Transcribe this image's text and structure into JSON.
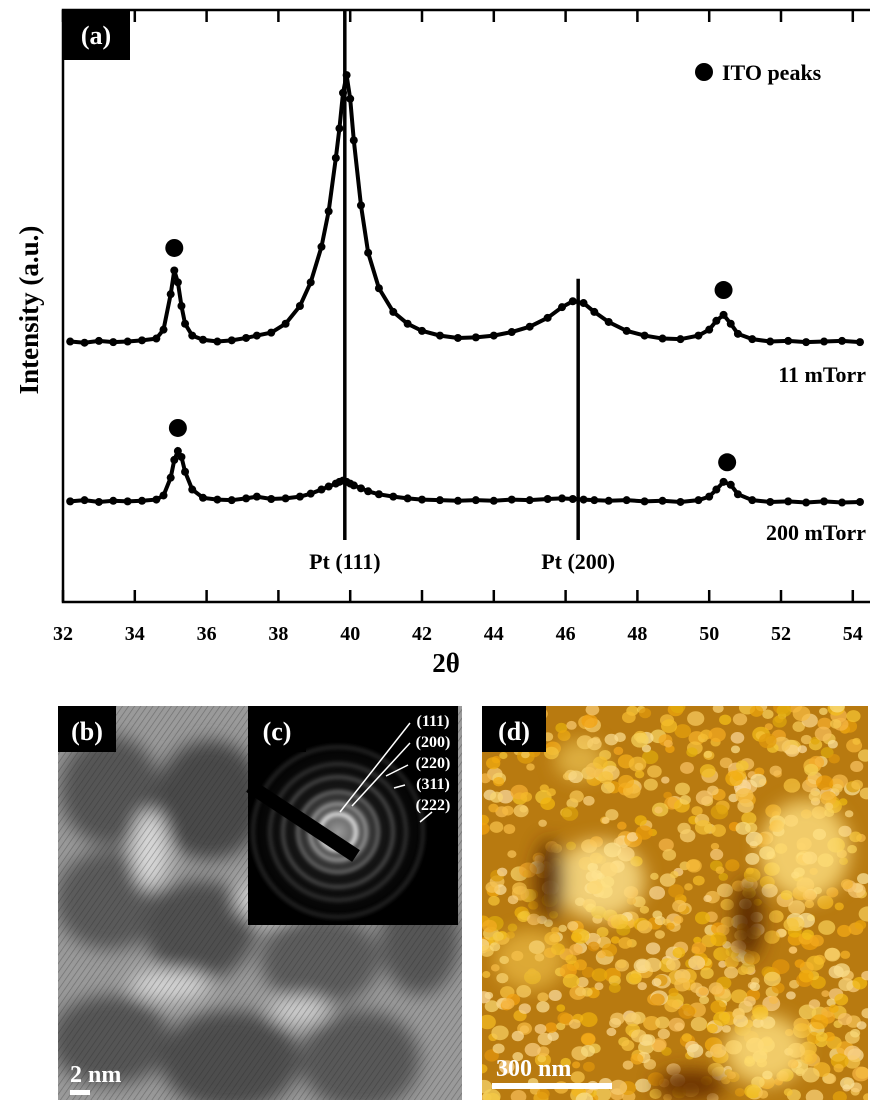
{
  "chart_data": {
    "type": "scatter",
    "panel_label": "(a)",
    "x_label": "2θ",
    "y_label": "Intensity (a.u.)",
    "xlim": [
      32,
      54.4
    ],
    "ylim": [
      0,
      100
    ],
    "xticks": [
      32,
      34,
      36,
      38,
      40,
      42,
      44,
      46,
      48,
      50,
      52,
      54
    ],
    "x": [
      32.2,
      32.6,
      33.0,
      33.4,
      33.8,
      34.2,
      34.6,
      34.8,
      35.0,
      35.1,
      35.2,
      35.3,
      35.4,
      35.6,
      35.9,
      36.3,
      36.7,
      37.1,
      37.4,
      37.8,
      38.2,
      38.6,
      38.9,
      39.2,
      39.4,
      39.6,
      39.7,
      39.8,
      39.9,
      40.0,
      40.1,
      40.3,
      40.5,
      40.8,
      41.2,
      41.6,
      42.0,
      42.5,
      43.0,
      43.5,
      44.0,
      44.5,
      45.0,
      45.5,
      45.9,
      46.2,
      46.5,
      46.8,
      47.2,
      47.7,
      48.2,
      48.7,
      49.2,
      49.7,
      50.0,
      50.2,
      50.4,
      50.6,
      50.8,
      51.2,
      51.7,
      52.2,
      52.7,
      53.2,
      53.7,
      54.2
    ],
    "series": [
      {
        "name": "11 mTorr",
        "color": "#000000",
        "values": [
          44,
          43.8,
          44.1,
          43.9,
          44,
          44.2,
          44.5,
          46,
          52,
          56,
          54,
          50,
          47,
          45,
          44.3,
          44,
          44.2,
          44.6,
          45,
          45.5,
          47,
          50,
          54,
          60,
          66,
          75,
          80,
          86,
          89,
          85,
          78,
          67,
          59,
          53,
          49,
          47,
          45.8,
          45,
          44.6,
          44.7,
          45,
          45.6,
          46.5,
          48,
          49.8,
          50.8,
          50.5,
          49,
          47.3,
          45.8,
          45,
          44.5,
          44.4,
          45,
          46,
          47.5,
          48.5,
          47,
          45.3,
          44.4,
          44,
          44.1,
          43.9,
          44,
          44.1,
          43.9
        ]
      },
      {
        "name": "200 mTorr",
        "color": "#000000",
        "values": [
          17,
          17.2,
          16.9,
          17.1,
          17,
          17.1,
          17.3,
          18,
          21,
          24,
          25.5,
          24.5,
          22,
          19,
          17.6,
          17.3,
          17.2,
          17.5,
          17.8,
          17.4,
          17.5,
          17.8,
          18.3,
          19,
          19.5,
          20,
          20.3,
          20.5,
          20.3,
          20,
          19.7,
          19.2,
          18.7,
          18.2,
          17.8,
          17.5,
          17.3,
          17.2,
          17.1,
          17.2,
          17.1,
          17.3,
          17.2,
          17.4,
          17.5,
          17.4,
          17.3,
          17.2,
          17.1,
          17.2,
          17,
          17.1,
          16.9,
          17.2,
          17.8,
          19,
          20.3,
          19.8,
          18.2,
          17.2,
          16.9,
          17,
          16.8,
          17,
          16.8,
          16.9
        ]
      }
    ],
    "markers": {
      "name": "ITO peaks",
      "x": [
        35.1,
        50.4,
        35.2,
        50.5
      ],
      "y": [
        59.8,
        52.7,
        29.4,
        23.6
      ]
    },
    "reference_lines": [
      {
        "label": "Pt (111)",
        "x": 39.85,
        "y_top": 100
      },
      {
        "label": "Pt (200)",
        "x": 46.35,
        "y_top": 54.6
      }
    ]
  },
  "panels": [
    {
      "label": "(b)",
      "scale_bar": "2 nm"
    },
    {
      "label": "(c)",
      "rings": [
        "(111)",
        "(200)",
        "(220)",
        "(311)",
        "(222)"
      ]
    },
    {
      "label": "(d)",
      "scale_bar": "300 nm"
    }
  ]
}
